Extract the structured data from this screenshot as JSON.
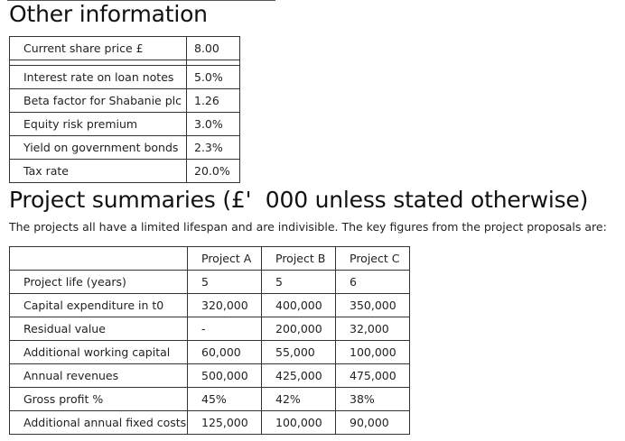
{
  "other_info": {
    "title": "Other information",
    "rows": [
      {
        "label": "Current share price £",
        "value": "8.00"
      },
      {
        "label": "Interest rate on loan notes",
        "value": "5.0%"
      },
      {
        "label": "Beta factor for Shabanie plc",
        "value": "1.26"
      },
      {
        "label": "Equity risk premium",
        "value": "3.0%"
      },
      {
        "label": "Yield on government bonds",
        "value": "2.3%"
      },
      {
        "label": "Tax rate",
        "value": "20.0%"
      }
    ]
  },
  "projects": {
    "title": "Project summaries (£'  000 unless stated otherwise)",
    "intro": "The projects all have a limited lifespan and are indivisible. The key figures from the project proposals are:",
    "headers": [
      "",
      "Project A",
      "Project B",
      "Project C"
    ],
    "rows": [
      [
        "Project life (years)",
        "5",
        "5",
        "6"
      ],
      [
        "Capital expenditure in t0",
        "320,000",
        "400,000",
        "350,000"
      ],
      [
        "Residual value",
        "-",
        "200,000",
        "32,000"
      ],
      [
        "Additional working capital",
        "60,000",
        "55,000",
        "100,000"
      ],
      [
        "Annual revenues",
        "500,000",
        "425,000",
        "475,000"
      ],
      [
        "Gross profit %",
        "45%",
        "42%",
        "38%"
      ],
      [
        "Additional annual fixed costs",
        "125,000",
        "100,000",
        "90,000"
      ]
    ]
  }
}
